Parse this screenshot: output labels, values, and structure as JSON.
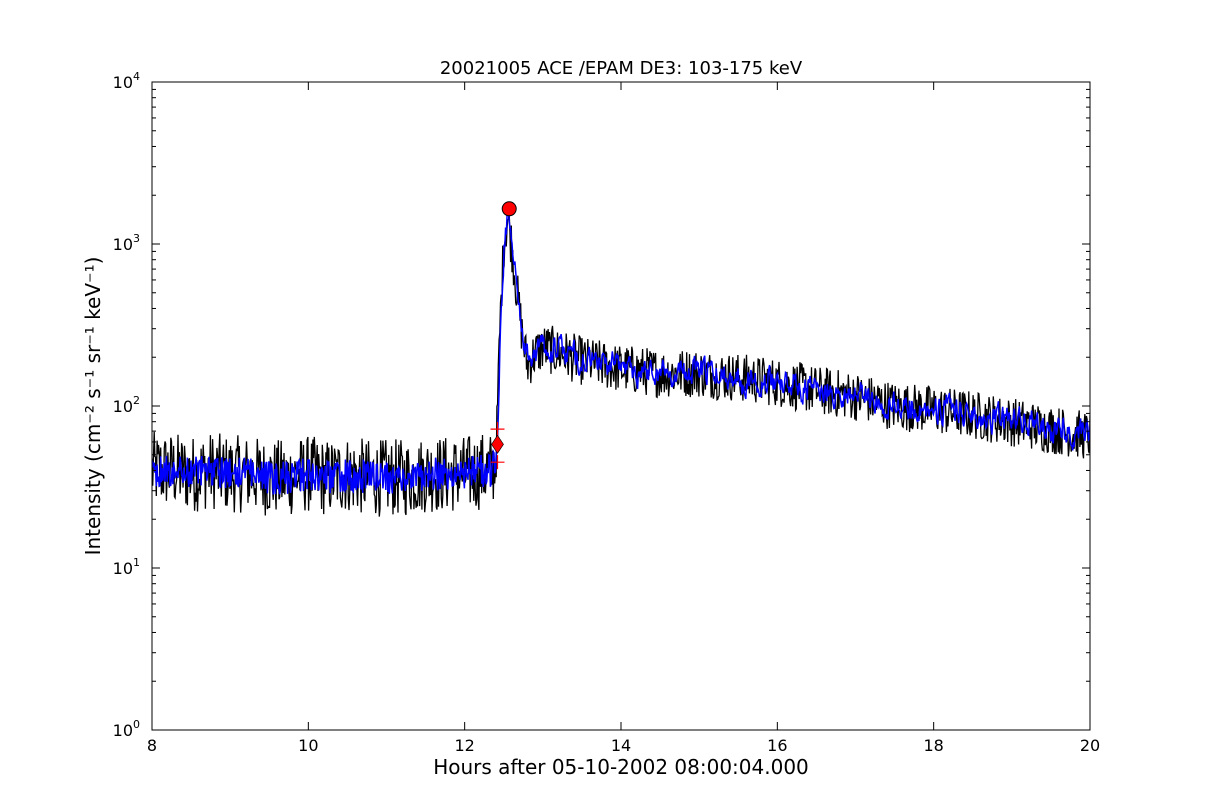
{
  "chart_data": {
    "type": "line",
    "title": "20021005 ACE /EPAM DE3: 103-175 keV",
    "xlabel": "Hours after 05-10-2002 08:00:04.000",
    "ylabel": "Intensity (cm⁻² s⁻¹ sr⁻¹ keV⁻¹)",
    "xlim": [
      8,
      20
    ],
    "ylim": [
      1,
      10000
    ],
    "yscale": "log",
    "grid": false,
    "x_ticks": [
      "8",
      "10",
      "12",
      "14",
      "16",
      "18",
      "20"
    ],
    "y_ticks": [
      {
        "base": "10",
        "exp": "0"
      },
      {
        "base": "10",
        "exp": "1"
      },
      {
        "base": "10",
        "exp": "2"
      },
      {
        "base": "10",
        "exp": "3"
      },
      {
        "base": "10",
        "exp": "4"
      }
    ],
    "series": [
      {
        "color": "#000000",
        "style": "raw",
        "x": [
          8.0,
          8.25,
          8.5,
          8.75,
          9.0,
          9.25,
          9.5,
          9.75,
          10.0,
          10.25,
          10.5,
          10.75,
          11.0,
          11.25,
          11.5,
          11.75,
          12.0,
          12.25,
          12.35,
          12.4,
          12.45,
          12.5,
          12.55,
          12.6,
          12.65,
          12.7,
          12.75,
          12.8,
          12.9,
          13.0,
          13.25,
          13.5,
          14.0,
          14.5,
          15.0,
          15.5,
          16.0,
          16.5,
          17.0,
          17.5,
          18.0,
          18.5,
          19.0,
          19.5,
          20.0
        ],
        "y": [
          40,
          40,
          38,
          40,
          38,
          38,
          36,
          36,
          38,
          36,
          38,
          36,
          36,
          36,
          38,
          38,
          38,
          40,
          40,
          45,
          300,
          1000,
          1450,
          1000,
          600,
          380,
          250,
          180,
          210,
          230,
          210,
          190,
          170,
          160,
          160,
          150,
          140,
          125,
          115,
          100,
          95,
          88,
          80,
          72,
          65
        ]
      },
      {
        "color": "#0000ff",
        "style": "smoothed",
        "x": [
          8.0,
          8.25,
          8.5,
          8.75,
          9.0,
          9.25,
          9.5,
          9.75,
          10.0,
          10.25,
          10.5,
          10.75,
          11.0,
          11.25,
          11.5,
          11.75,
          12.0,
          12.25,
          12.35,
          12.4,
          12.45,
          12.5,
          12.55,
          12.6,
          12.65,
          12.7,
          12.75,
          12.8,
          12.9,
          13.0,
          13.25,
          13.5,
          14.0,
          14.5,
          15.0,
          15.5,
          16.0,
          16.5,
          17.0,
          17.5,
          18.0,
          18.5,
          19.0,
          19.5,
          20.0
        ],
        "y": [
          40,
          40,
          38,
          40,
          38,
          38,
          36,
          36,
          38,
          36,
          38,
          36,
          36,
          36,
          38,
          38,
          38,
          40,
          40,
          45,
          300,
          1000,
          1450,
          1000,
          600,
          380,
          250,
          180,
          210,
          230,
          210,
          190,
          170,
          160,
          160,
          150,
          140,
          125,
          115,
          100,
          95,
          88,
          80,
          72,
          65
        ]
      }
    ],
    "markers": [
      {
        "type": "plus",
        "x": 12.42,
        "y": 72,
        "color": "#ff0000"
      },
      {
        "type": "plus",
        "x": 12.42,
        "y": 45,
        "color": "#ff0000"
      },
      {
        "type": "diamond",
        "x": 12.42,
        "y": 58,
        "color": "#ff0000"
      },
      {
        "type": "circle",
        "x": 12.57,
        "y": 1650,
        "color": "#ff0000"
      }
    ]
  }
}
